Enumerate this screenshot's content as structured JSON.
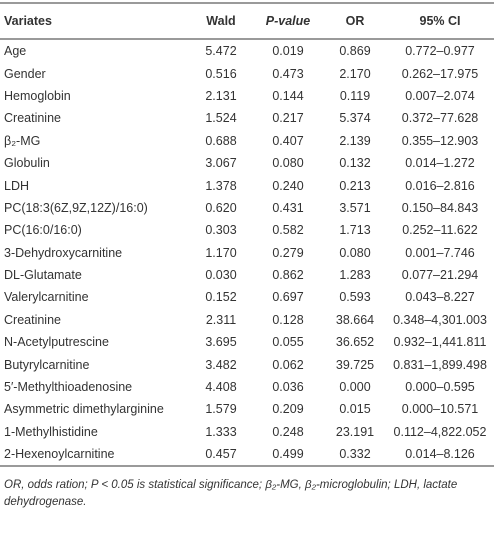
{
  "table": {
    "header": [
      "Variates",
      "Wald",
      "P-value",
      "OR",
      "95% CI"
    ],
    "rows": [
      [
        "Age",
        "5.472",
        "0.019",
        "0.869",
        "0.772–0.977"
      ],
      [
        "Gender",
        "0.516",
        "0.473",
        "2.170",
        "0.262–17.975"
      ],
      [
        "Hemoglobin",
        "2.131",
        "0.144",
        "0.119",
        "0.007–2.074"
      ],
      [
        "Creatinine",
        "1.524",
        "0.217",
        "5.374",
        "0.372–77.628"
      ],
      [
        "β₂-MG",
        "0.688",
        "0.407",
        "2.139",
        "0.355–12.903"
      ],
      [
        "Globulin",
        "3.067",
        "0.080",
        "0.132",
        "0.014–1.272"
      ],
      [
        "LDH",
        "1.378",
        "0.240",
        "0.213",
        "0.016–2.816"
      ],
      [
        "PC(18:3(6Z,9Z,12Z)/16:0)",
        "0.620",
        "0.431",
        "3.571",
        "0.150–84.843"
      ],
      [
        "PC(16:0/16:0)",
        "0.303",
        "0.582",
        "1.713",
        "0.252–11.622"
      ],
      [
        "3-Dehydroxycarnitine",
        "1.170",
        "0.279",
        "0.080",
        "0.001–7.746"
      ],
      [
        "DL-Glutamate",
        "0.030",
        "0.862",
        "1.283",
        "0.077–21.294"
      ],
      [
        "Valerylcarnitine",
        "0.152",
        "0.697",
        "0.593",
        "0.043–8.227"
      ],
      [
        "Creatinine",
        "2.311",
        "0.128",
        "38.664",
        "0.348–4,301.003"
      ],
      [
        "N-Acetylputrescine",
        "3.695",
        "0.055",
        "36.652",
        "0.932–1,441.811"
      ],
      [
        "Butyrylcarnitine",
        "3.482",
        "0.062",
        "39.725",
        "0.831–1,899.498"
      ],
      [
        "5′-Methylthioadenosine",
        "4.408",
        "0.036",
        "0.000",
        "0.000–0.595"
      ],
      [
        "Asymmetric dimethylarginine",
        "1.579",
        "0.209",
        "0.015",
        "0.000–10.571"
      ],
      [
        "1-Methylhistidine",
        "1.333",
        "0.248",
        "23.191",
        "0.112–4,822.052"
      ],
      [
        "2-Hexenoylcarnitine",
        "0.457",
        "0.499",
        "0.332",
        "0.014–8.126"
      ]
    ],
    "footnote": "OR, odds ration; P < 0.05 is statistical significance; β₂-MG, β₂-microglobulin; LDH, lactate dehydrogenase."
  }
}
